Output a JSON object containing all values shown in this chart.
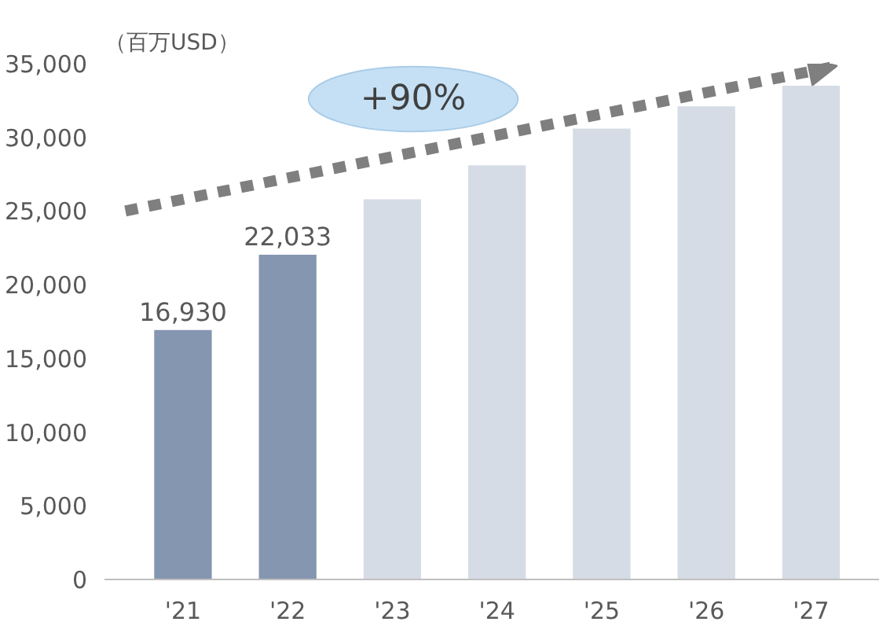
{
  "chart_data": {
    "type": "bar",
    "ylabel": "（百万USD）",
    "categories": [
      "'21",
      "'22",
      "'23",
      "'24",
      "'25",
      "'26",
      "'27"
    ],
    "values": [
      16930,
      22033,
      25800,
      28100,
      30600,
      32100,
      33500
    ],
    "colors": [
      "#8496b0",
      "#8496b0",
      "#d6dce5",
      "#d6dce5",
      "#d6dce5",
      "#d6dce5",
      "#d6dce5"
    ],
    "value_labels": [
      "16,930",
      "22,033",
      null,
      null,
      null,
      null,
      null
    ],
    "ylim": [
      0,
      35000
    ],
    "yticks": [
      {
        "value": 0,
        "label": "0"
      },
      {
        "value": 5000,
        "label": "5,000"
      },
      {
        "value": 10000,
        "label": "10,000"
      },
      {
        "value": 15000,
        "label": "15,000"
      },
      {
        "value": 20000,
        "label": "20,000"
      },
      {
        "value": 25000,
        "label": "25,000"
      },
      {
        "value": 30000,
        "label": "30,000"
      },
      {
        "value": 35000,
        "label": "35,000"
      }
    ],
    "annotations": [
      "+90%"
    ],
    "grid": false
  }
}
